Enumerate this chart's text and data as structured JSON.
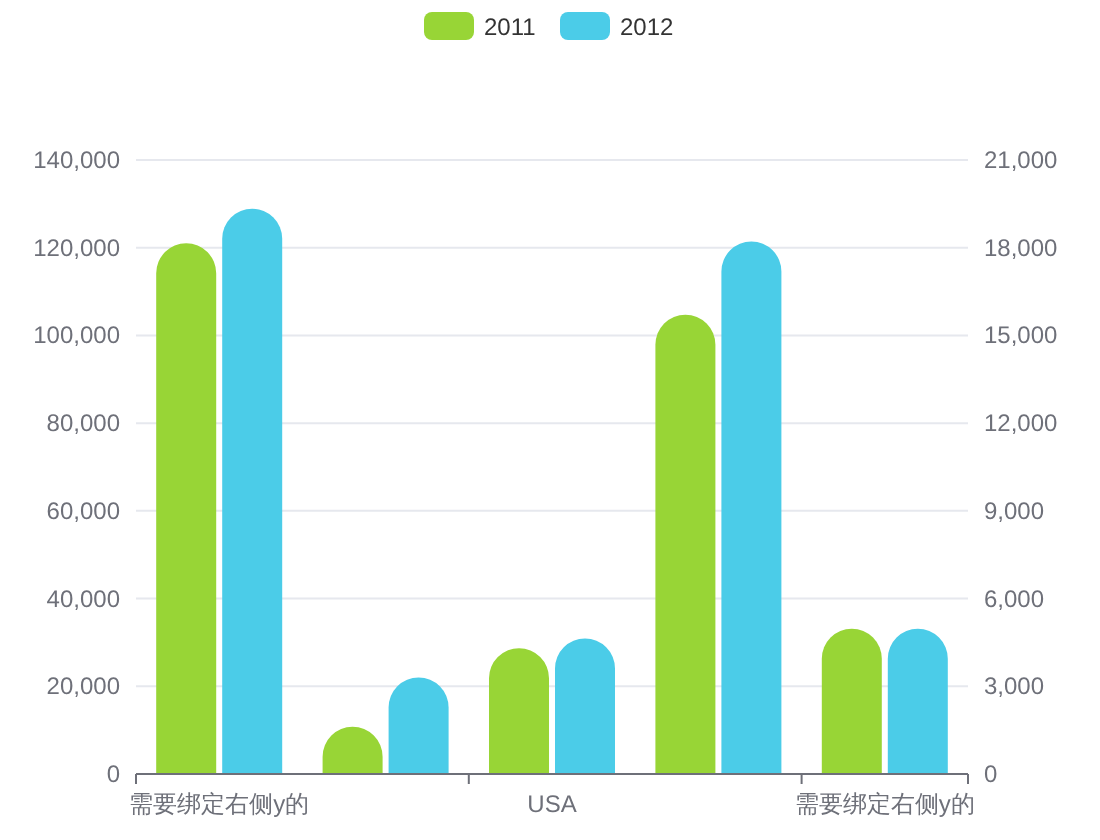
{
  "chart_data": {
    "type": "bar",
    "categories": [
      "需要绑定右侧y的",
      null,
      "USA",
      null,
      "需要绑定右侧y的"
    ],
    "series": [
      {
        "name": "2011",
        "color": "#98d536",
        "values": [
          121000,
          10800,
          28700,
          104700,
          33100
        ]
      },
      {
        "name": "2012",
        "color": "#4bcce8",
        "values": [
          128900,
          22000,
          30900,
          121400,
          33100
        ]
      }
    ],
    "ylim": [
      0,
      140000
    ],
    "yticks": [
      {
        "value": 0,
        "label": "0"
      },
      {
        "value": 20000,
        "label": "20,000"
      },
      {
        "value": 40000,
        "label": "40,000"
      },
      {
        "value": 60000,
        "label": "60,000"
      },
      {
        "value": 80000,
        "label": "80,000"
      },
      {
        "value": 100000,
        "label": "100,000"
      },
      {
        "value": 120000,
        "label": "120,000"
      },
      {
        "value": 140000,
        "label": "140,000"
      }
    ],
    "y2lim": [
      0,
      21000
    ],
    "y2ticks": [
      {
        "value": 0,
        "label": "0"
      },
      {
        "value": 3000,
        "label": "3,000"
      },
      {
        "value": 6000,
        "label": "6,000"
      },
      {
        "value": 9000,
        "label": "9,000"
      },
      {
        "value": 12000,
        "label": "12,000"
      },
      {
        "value": 15000,
        "label": "15,000"
      },
      {
        "value": 18000,
        "label": "18,000"
      },
      {
        "value": 21000,
        "label": "21,000"
      }
    ],
    "grid": "y",
    "legend": "top"
  }
}
